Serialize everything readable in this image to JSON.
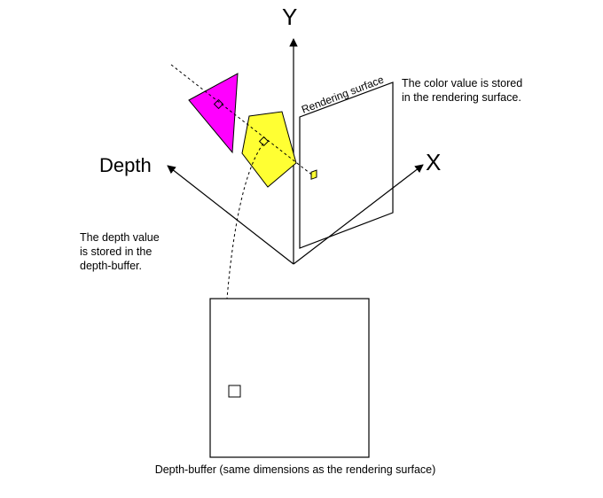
{
  "axes": {
    "y_label": "Y",
    "x_label": "X",
    "depth_label": "Depth"
  },
  "rendering_surface": {
    "label": "Rendering surface",
    "note_line1": "The color value is stored",
    "note_line2": "in the rendering surface."
  },
  "depth_note": {
    "line1": "The depth value",
    "line2": "is stored in the",
    "line3": "depth-buffer."
  },
  "depth_buffer": {
    "caption": "Depth-buffer (same dimensions as the rendering surface)"
  },
  "colors": {
    "magenta_triangle": "#ff00ff",
    "yellow_pentagon": "#ffff33",
    "yellow_pixel": "#ffff33",
    "line": "#000000",
    "background": "#ffffff"
  }
}
